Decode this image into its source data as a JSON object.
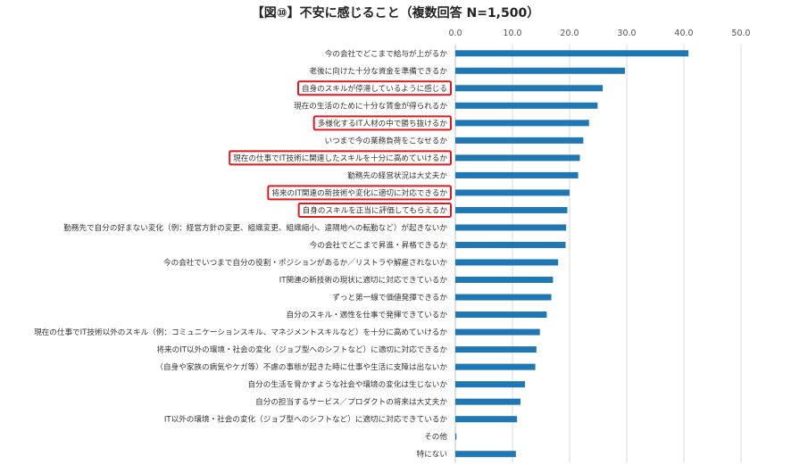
{
  "chart_data": {
    "type": "bar",
    "orientation": "horizontal",
    "title": "【図⑩】不安に感じること（複数回答 N=1,500）",
    "xlim": [
      0,
      50
    ],
    "ticks": [
      "0.0",
      "10.0",
      "20.0",
      "30.0",
      "40.0",
      "50.0"
    ],
    "tick_values": [
      0,
      10,
      20,
      30,
      40,
      50
    ],
    "bar_color": "#1f77b4",
    "highlight_color": "#e0191e",
    "categories": [
      "今の会社でどこまで給与が上がるか",
      "老後に向けた十分な資金を準備できるか",
      "自身のスキルが停滞しているように感じる",
      "現在の生活のために十分な賃金が得られるか",
      "多様化するIT人材の中で勝ち抜けるか",
      "いつまで今の業務負荷をこなせるか",
      "現在の仕事でIT技術に関連したスキルを十分に高めていけるか",
      "勤務先の経営状況は大丈夫か",
      "将来のIT関連の新技術や変化に適切に対応できるか",
      "自身のスキルを正当に評価してもらえるか",
      "勤務先で自分の好まない変化（例：経営方針の変更、組織変更、組織縮小、遠隔地への転勤など）が起きないか",
      "今の会社でどこまで昇進・昇格できるか",
      "今の会社でいつまで自分の役割・ポジションがあるか／リストラや解雇されないか",
      "IT関連の新技術の現状に適切に対応できているか",
      "ずっと第一線で価値発揮できるか",
      "自分のスキル・適性を仕事で発揮できているか",
      "現在の仕事でIT技術以外のスキル（例：コミュニケーションスキル、マネジメントスキルなど）を十分に高めていけるか",
      "将来のIT以外の環境・社会の変化（ジョブ型へのシフトなど）に適切に対応できるか",
      "（自身や家族の病気やケガ等）不慮の事態が起きた時に仕事や生活に支障は出ないか",
      "自分の生活を脅かすような社会や環境の変化は生じないか",
      "自分の担当するサービス／プロダクトの将来は大丈夫か",
      "IT以外の環境・社会の変化（ジョブ型へのシフトなど）に適切に対応できているか",
      "その他",
      "特にない"
    ],
    "values": [
      40.8,
      29.7,
      25.8,
      24.9,
      23.4,
      22.4,
      21.8,
      21.5,
      20.0,
      19.6,
      19.4,
      19.3,
      18.0,
      17.1,
      16.8,
      16.0,
      14.8,
      14.2,
      14.0,
      12.2,
      11.4,
      10.8,
      0.2,
      10.6
    ],
    "highlighted": [
      false,
      false,
      true,
      false,
      true,
      false,
      true,
      false,
      true,
      true,
      false,
      false,
      false,
      false,
      false,
      false,
      false,
      false,
      false,
      false,
      false,
      false,
      false,
      false
    ]
  }
}
